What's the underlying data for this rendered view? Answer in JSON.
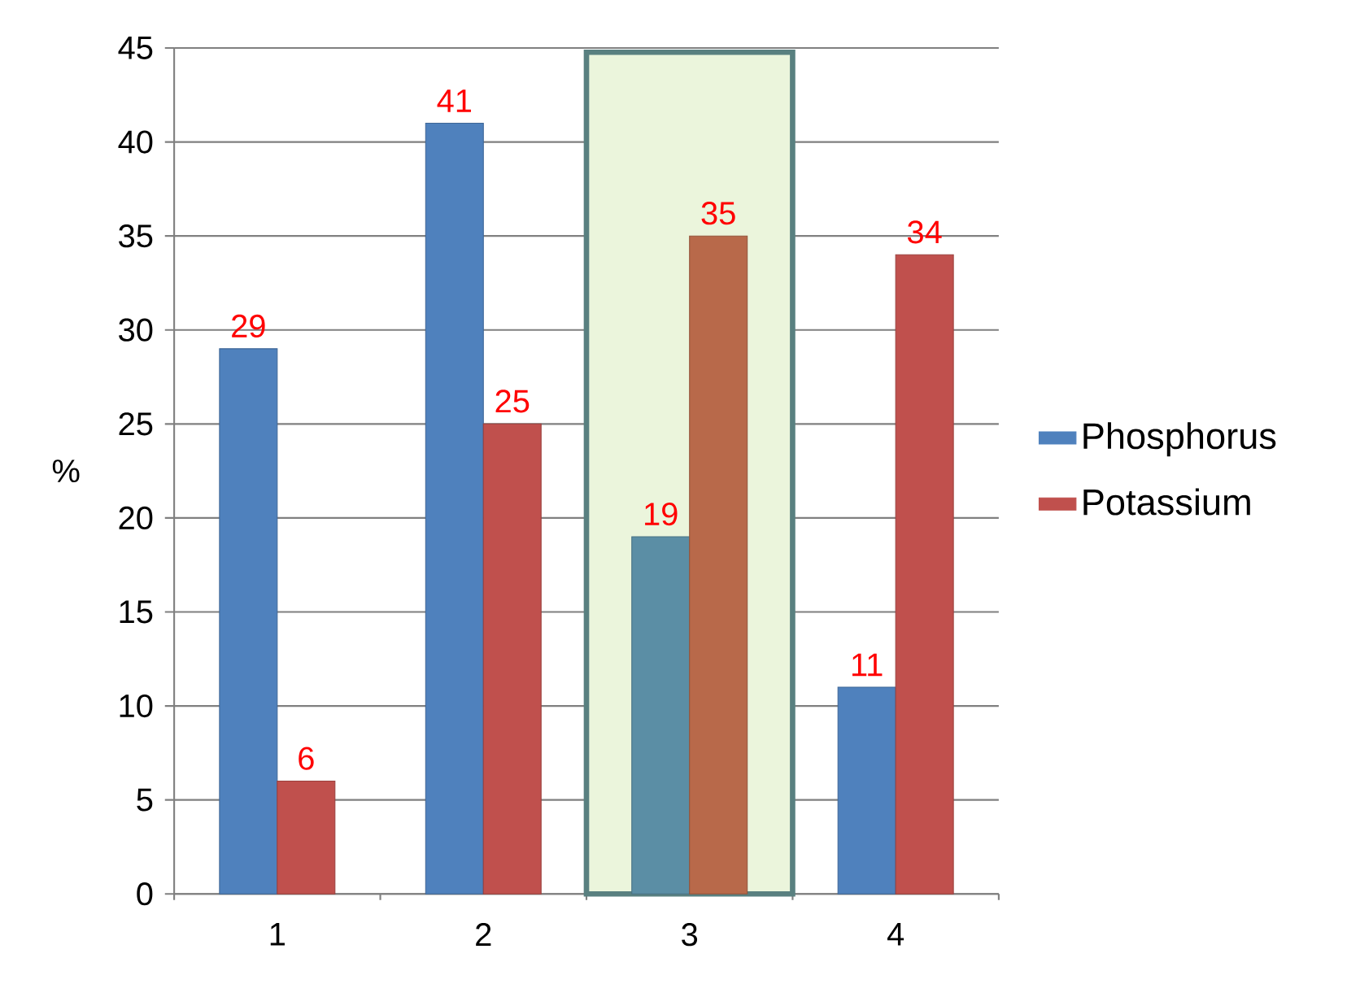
{
  "chart_data": {
    "type": "bar",
    "ylabel": "%",
    "categories": [
      "1",
      "2",
      "3",
      "4"
    ],
    "series": [
      {
        "name": "Phosphorus",
        "color": "#4f81bd",
        "colors": [
          "#4f81bd",
          "#4f81bd",
          "#5b8ea5",
          "#4f81bd"
        ],
        "values": [
          29,
          41,
          19,
          11
        ]
      },
      {
        "name": "Potassium",
        "color": "#c0504d",
        "colors": [
          "#c0504d",
          "#c0504d",
          "#b8694a",
          "#c0504d"
        ],
        "values": [
          6,
          25,
          35,
          34
        ]
      }
    ],
    "bands": [
      {
        "axis": "x",
        "from": "3",
        "to": "3",
        "color": "#ebf5dc"
      }
    ],
    "ylim": [
      0,
      45
    ],
    "yticks": [
      0,
      5,
      10,
      15,
      20,
      25,
      30,
      35,
      40,
      45
    ],
    "grid": "y",
    "legend": "right",
    "data_labels": true
  }
}
